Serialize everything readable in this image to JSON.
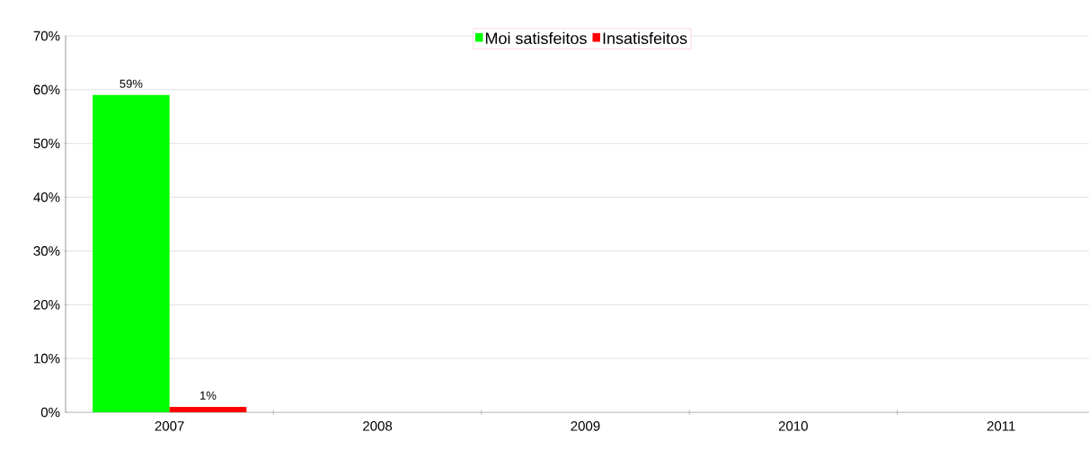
{
  "chart_data": {
    "type": "bar",
    "categories": [
      "2007",
      "2008",
      "2009",
      "2010",
      "2011"
    ],
    "series": [
      {
        "name": "Moi satisfeitos",
        "color": "#00ff00",
        "values": [
          59,
          null,
          null,
          null,
          null
        ],
        "value_labels": [
          "59%",
          null,
          null,
          null,
          null
        ]
      },
      {
        "name": "Insatisfeitos",
        "color": "#ff0000",
        "values": [
          1,
          null,
          null,
          null,
          null
        ],
        "value_labels": [
          "1%",
          null,
          null,
          null,
          null
        ]
      }
    ],
    "ylim": [
      0,
      70
    ],
    "yticks": [
      {
        "value": 0,
        "label": "0%"
      },
      {
        "value": 10,
        "label": "10%"
      },
      {
        "value": 20,
        "label": "20%"
      },
      {
        "value": 30,
        "label": "30%"
      },
      {
        "value": 40,
        "label": "40%"
      },
      {
        "value": 50,
        "label": "50%"
      },
      {
        "value": 60,
        "label": "60%"
      },
      {
        "value": 70,
        "label": "70%"
      }
    ],
    "grid": "y",
    "legend": "top"
  }
}
